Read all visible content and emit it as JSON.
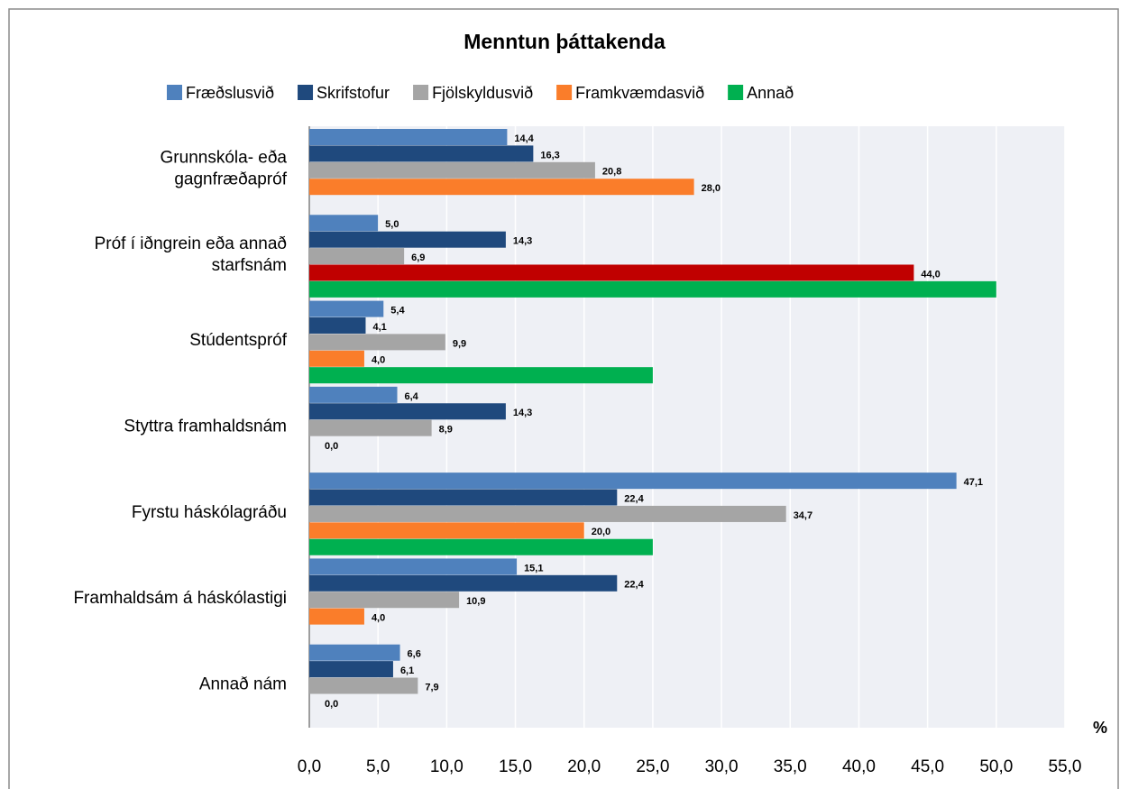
{
  "chart_data": {
    "type": "hbar",
    "title": "Menntun þáttakenda",
    "x_label": "%",
    "categories": [
      "Grunnskóla- eða\ngagnfræðapróf",
      "Próf í iðngrein eða annað\nstarfsnám",
      "Stúdentspróf",
      "Styttra framhaldsnám",
      "Fyrstu háskólagráðu",
      "Framhaldsám á háskólastigi",
      "Annað nám"
    ],
    "series": [
      {
        "name": "Fræðslusvið",
        "color": "#4f81bd",
        "values": [
          14.4,
          5.0,
          5.4,
          6.4,
          47.1,
          15.1,
          6.6
        ],
        "value_labels": [
          "14,4",
          "5,0",
          "5,4",
          "6,4",
          "47,1",
          "15,1",
          "6,6"
        ]
      },
      {
        "name": "Skrifstofur",
        "color": "#1f497d",
        "values": [
          16.3,
          14.3,
          4.1,
          14.3,
          22.4,
          22.4,
          6.1
        ],
        "value_labels": [
          "16,3",
          "14,3",
          "4,1",
          "14,3",
          "22,4",
          "22,4",
          "6,1"
        ]
      },
      {
        "name": "Fjölskyldusvið",
        "color": "#a5a5a5",
        "values": [
          20.8,
          6.9,
          9.9,
          8.9,
          34.7,
          10.9,
          7.9
        ],
        "value_labels": [
          "20,8",
          "6,9",
          "9,9",
          "8,9",
          "34,7",
          "10,9",
          "7,9"
        ]
      },
      {
        "name": "Framkvæmdasvið",
        "color": "#fa7d2a",
        "point_colors": {
          "1": "#c00000"
        },
        "values": [
          28.0,
          44.0,
          4.0,
          0.0,
          20.0,
          4.0,
          0.0
        ],
        "value_labels": [
          "28,0",
          "44,0",
          "4,0",
          "0,0",
          "20,0",
          "4,0",
          "0,0"
        ]
      },
      {
        "name": "Annað",
        "color": "#00b050",
        "values": [
          null,
          50,
          25,
          null,
          25,
          null,
          null
        ]
      }
    ],
    "xlim": [
      0,
      55
    ],
    "xticks": [
      {
        "value": 0,
        "label": "0,0"
      },
      {
        "value": 5,
        "label": "5,0"
      },
      {
        "value": 10,
        "label": "10,0"
      },
      {
        "value": 15,
        "label": "15,0"
      },
      {
        "value": 20,
        "label": "20,0"
      },
      {
        "value": 25,
        "label": "25,0"
      },
      {
        "value": 30,
        "label": "30,0"
      },
      {
        "value": 35,
        "label": "35,0"
      },
      {
        "value": 40,
        "label": "40,0"
      },
      {
        "value": 45,
        "label": "45,0"
      },
      {
        "value": 50,
        "label": "50,0"
      },
      {
        "value": 55,
        "label": "55,0"
      }
    ],
    "grid": true
  }
}
